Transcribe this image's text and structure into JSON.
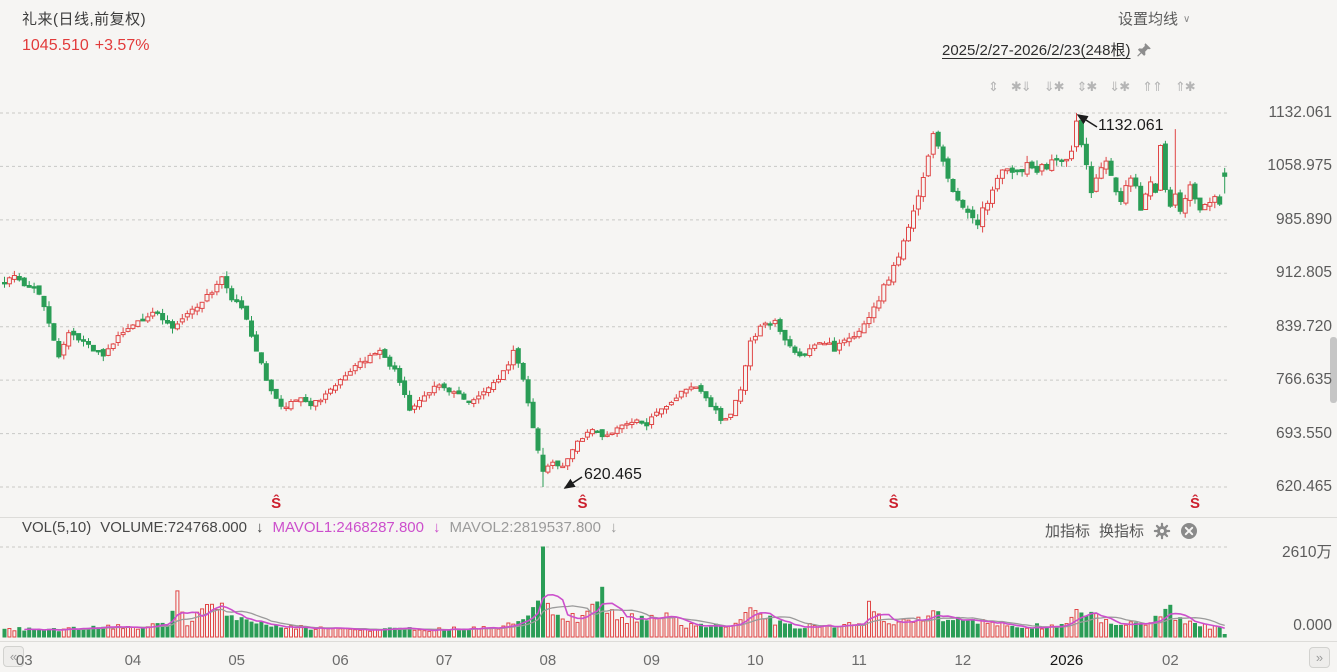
{
  "header": {
    "title": "礼来(日线,前复权)",
    "price": "1045.510",
    "change_pct": "+3.57%",
    "ma_settings_label": "设置均线",
    "chevron": "∨",
    "date_range_label": "2025/2/27-2026/2/23(248根)"
  },
  "toolbar": {
    "icons": [
      "⇕",
      "✱⇓",
      "⇓✱",
      "⇕✱",
      "⇓✱",
      "⇑⇑",
      "⇑✱"
    ]
  },
  "vol_header": {
    "indicator": "VOL(5,10)",
    "volume": "VOLUME:724768.000",
    "mavol1": "MAVOL1:2468287.800",
    "mavol2": "MAVOL2:2819537.800",
    "arrow": "↓",
    "add_indicator": "加指标",
    "switch_indicator": "换指标"
  },
  "axes": {
    "price_ticks": [
      "1132.061",
      "1058.975",
      "985.890",
      "912.805",
      "839.720",
      "766.635",
      "693.550",
      "620.465"
    ],
    "volume_top": "2610万",
    "volume_bottom": "0.000",
    "months": [
      {
        "label": "03",
        "day": 4
      },
      {
        "label": "04",
        "day": 26
      },
      {
        "label": "05",
        "day": 47
      },
      {
        "label": "06",
        "day": 68
      },
      {
        "label": "07",
        "day": 89
      },
      {
        "label": "08",
        "day": 110
      },
      {
        "label": "09",
        "day": 131
      },
      {
        "label": "10",
        "day": 152
      },
      {
        "label": "11",
        "day": 173
      },
      {
        "label": "12",
        "day": 194
      },
      {
        "label": "2026",
        "day": 215,
        "emph": true
      },
      {
        "label": "02",
        "day": 236
      }
    ]
  },
  "annotations": {
    "high_label": "1132.061",
    "low_label": "620.465",
    "event_marker": "Ŝ",
    "event_days": [
      55,
      117,
      180,
      241
    ]
  },
  "nav": {
    "scroll_left": "«",
    "scroll_right": "»"
  },
  "colors": {
    "up": "#e04646",
    "down": "#2a9d56",
    "up_fill": "#f6f5f3",
    "mavol1": "#cc4fcc",
    "mavol2": "#9b9b9b",
    "grid": "#c9c9c6",
    "arrow_ink": "#1c1c1c"
  },
  "chart_data": {
    "type": "candlestick",
    "title": "礼来 日线 前复权",
    "bars": 248,
    "date_start": "2025/2/27",
    "date_end": "2026/2/23",
    "legend": [
      "VOLUME",
      "MAVOL1",
      "MAVOL2"
    ],
    "price_axis": {
      "min": 620.465,
      "max": 1132.061,
      "ticks": [
        1132.061,
        1058.975,
        985.89,
        912.805,
        839.72,
        766.635,
        693.55,
        620.465
      ]
    },
    "volume_axis": {
      "min": 0,
      "max": 26100000,
      "max_label": "2610万"
    },
    "key_points": {
      "period_high": 1132.061,
      "period_low": 620.465,
      "low_day": 109,
      "high_day": 217,
      "last_close": 1045.51,
      "last_change_pct": 3.57,
      "last_volume": 724768.0,
      "mavol1": 2468287.8,
      "mavol2": 2819537.8
    },
    "close_path_anchors": [
      [
        0,
        903
      ],
      [
        2,
        912
      ],
      [
        4,
        898
      ],
      [
        6,
        893
      ],
      [
        8,
        868
      ],
      [
        11,
        800
      ],
      [
        13,
        828
      ],
      [
        16,
        818
      ],
      [
        20,
        798
      ],
      [
        23,
        825
      ],
      [
        27,
        848
      ],
      [
        31,
        860
      ],
      [
        34,
        838
      ],
      [
        36,
        850
      ],
      [
        39,
        868
      ],
      [
        42,
        888
      ],
      [
        44,
        905
      ],
      [
        46,
        880
      ],
      [
        48,
        862
      ],
      [
        50,
        830
      ],
      [
        53,
        765
      ],
      [
        56,
        728
      ],
      [
        59,
        742
      ],
      [
        62,
        735
      ],
      [
        65,
        745
      ],
      [
        68,
        768
      ],
      [
        72,
        788
      ],
      [
        76,
        806
      ],
      [
        79,
        780
      ],
      [
        82,
        728
      ],
      [
        85,
        748
      ],
      [
        88,
        758
      ],
      [
        91,
        752
      ],
      [
        94,
        738
      ],
      [
        97,
        748
      ],
      [
        100,
        768
      ],
      [
        102,
        790
      ],
      [
        103,
        805
      ],
      [
        105,
        768
      ],
      [
        107,
        700
      ],
      [
        108,
        668
      ],
      [
        109,
        641
      ],
      [
        111,
        655
      ],
      [
        113,
        648
      ],
      [
        116,
        682
      ],
      [
        119,
        700
      ],
      [
        121,
        688
      ],
      [
        124,
        700
      ],
      [
        127,
        712
      ],
      [
        130,
        706
      ],
      [
        133,
        728
      ],
      [
        136,
        742
      ],
      [
        139,
        760
      ],
      [
        141,
        748
      ],
      [
        143,
        733
      ],
      [
        145,
        712
      ],
      [
        147,
        722
      ],
      [
        149,
        755
      ],
      [
        151,
        818
      ],
      [
        153,
        838
      ],
      [
        156,
        848
      ],
      [
        158,
        824
      ],
      [
        160,
        805
      ],
      [
        162,
        800
      ],
      [
        164,
        815
      ],
      [
        166,
        820
      ],
      [
        168,
        808
      ],
      [
        170,
        818
      ],
      [
        172,
        828
      ],
      [
        174,
        840
      ],
      [
        175,
        852
      ],
      [
        177,
        878
      ],
      [
        179,
        908
      ],
      [
        181,
        938
      ],
      [
        183,
        972
      ],
      [
        185,
        1018
      ],
      [
        186,
        1048
      ],
      [
        187,
        1078
      ],
      [
        188,
        1108
      ],
      [
        190,
        1062
      ],
      [
        192,
        1022
      ],
      [
        194,
        1000
      ],
      [
        196,
        988
      ],
      [
        197,
        983
      ],
      [
        199,
        1012
      ],
      [
        201,
        1040
      ],
      [
        203,
        1058
      ],
      [
        205,
        1050
      ],
      [
        207,
        1063
      ],
      [
        209,
        1055
      ],
      [
        211,
        1060
      ],
      [
        213,
        1070
      ],
      [
        215,
        1066
      ],
      [
        216,
        1082
      ],
      [
        217,
        1121
      ],
      [
        218,
        1088
      ],
      [
        219,
        1058
      ],
      [
        220,
        1022
      ],
      [
        221,
        1040
      ],
      [
        222,
        1056
      ],
      [
        223,
        1068
      ],
      [
        224,
        1045
      ],
      [
        225,
        1028
      ],
      [
        226,
        1015
      ],
      [
        227,
        1035
      ],
      [
        228,
        1048
      ],
      [
        229,
        1028
      ],
      [
        230,
        1002
      ],
      [
        231,
        1020
      ],
      [
        232,
        1038
      ],
      [
        233,
        1028
      ],
      [
        234,
        1085
      ],
      [
        235,
        1032
      ],
      [
        236,
        1008
      ],
      [
        237,
        1022
      ],
      [
        238,
        1000
      ],
      [
        239,
        1013
      ],
      [
        240,
        1032
      ],
      [
        241,
        1018
      ],
      [
        242,
        1000
      ],
      [
        243,
        1010
      ],
      [
        244,
        1006
      ],
      [
        245,
        1020
      ],
      [
        246,
        1012
      ],
      [
        247,
        1045.51
      ]
    ],
    "volume_anchors": [
      [
        0,
        2200000
      ],
      [
        10,
        2000000
      ],
      [
        20,
        2600000
      ],
      [
        33,
        3500000
      ],
      [
        35,
        11000000
      ],
      [
        37,
        4000000
      ],
      [
        44,
        10000000
      ],
      [
        46,
        5000000
      ],
      [
        55,
        3000000
      ],
      [
        65,
        2400000
      ],
      [
        80,
        2200000
      ],
      [
        95,
        2400000
      ],
      [
        105,
        4000000
      ],
      [
        108,
        9000000
      ],
      [
        109,
        26100000
      ],
      [
        110,
        9500000
      ],
      [
        112,
        7000000
      ],
      [
        116,
        5000000
      ],
      [
        121,
        11500000
      ],
      [
        124,
        4500000
      ],
      [
        133,
        7000000
      ],
      [
        138,
        3200000
      ],
      [
        148,
        3500000
      ],
      [
        150,
        8000000
      ],
      [
        152,
        6000000
      ],
      [
        160,
        3000000
      ],
      [
        170,
        3200000
      ],
      [
        174,
        4000000
      ],
      [
        175,
        9000000
      ],
      [
        178,
        4200000
      ],
      [
        185,
        5000000
      ],
      [
        188,
        6500000
      ],
      [
        193,
        5000000
      ],
      [
        197,
        4200000
      ],
      [
        205,
        3000000
      ],
      [
        215,
        3400000
      ],
      [
        217,
        9500000
      ],
      [
        219,
        6000000
      ],
      [
        225,
        4000000
      ],
      [
        230,
        3400000
      ],
      [
        234,
        6000000
      ],
      [
        236,
        8000000
      ],
      [
        238,
        5000000
      ],
      [
        242,
        3200000
      ],
      [
        245,
        2600000
      ],
      [
        246,
        2400000
      ],
      [
        247,
        724768
      ]
    ]
  }
}
